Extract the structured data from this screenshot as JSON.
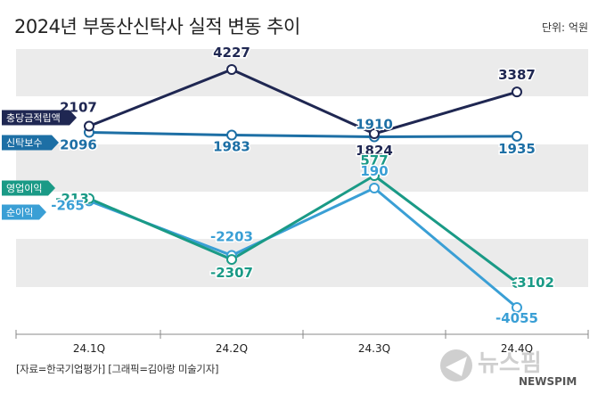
{
  "title": "2024년 부동산신탁사 실적 변동 추이",
  "unit": "단위: 억원",
  "source": "[자료=한국기업평가] [그래픽=김아랑 미술기자]",
  "logo": {
    "text": "뉴스핌",
    "subtext": "NEWSPIM"
  },
  "chart_data": {
    "type": "line",
    "categories": [
      "24.1Q",
      "24.2Q",
      "24.3Q",
      "24.4Q"
    ],
    "series": [
      {
        "name": "충당금적립액",
        "values": [
          2107,
          4227,
          1824,
          3387
        ],
        "labels": [
          "2107",
          "4227",
          "1824",
          "3387"
        ],
        "color": "#1f2752"
      },
      {
        "name": "신탁보수",
        "values": [
          2096,
          1983,
          1910,
          1935
        ],
        "labels": [
          "2096",
          "1983",
          "1910",
          "1935"
        ],
        "color": "#1d6fa5"
      },
      {
        "name": "영업이익",
        "values": [
          -213,
          -2307,
          577,
          -3102
        ],
        "labels": [
          "-213",
          "-2307",
          "577",
          "-3102"
        ],
        "color": "#1a9a86"
      },
      {
        "name": "순이익",
        "values": [
          -265,
          -2203,
          190,
          -4055
        ],
        "labels": [
          "-265",
          "-2203",
          "190",
          "-4055"
        ],
        "color": "#3a9fd5"
      }
    ],
    "grid": "alternating bands",
    "legend": "left tags"
  }
}
